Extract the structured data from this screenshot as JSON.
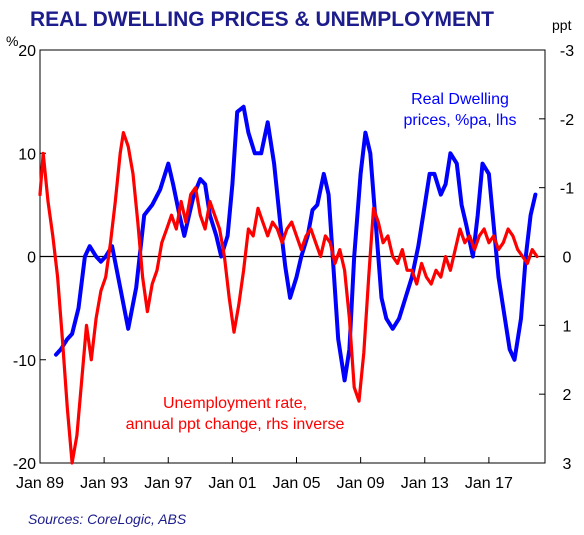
{
  "chart_data": {
    "type": "line",
    "title": "REAL DWELLING PRICES &  UNEMPLOYMENT",
    "left_unit": "%",
    "right_unit": "ppt",
    "source": "Sources: CoreLogic, ABS",
    "x_range": [
      1989.0,
      2020.5
    ],
    "y_left_range": [
      -20,
      20
    ],
    "y_right_range": [
      3,
      -3
    ],
    "y_left_ticks": [
      "-20",
      "-10",
      "0",
      "10",
      "20"
    ],
    "y_right_ticks": [
      "3",
      "2",
      "1",
      "0",
      "-1",
      "-2",
      "-3"
    ],
    "x_tick_labels": [
      "Jan 89",
      "Jan 93",
      "Jan 97",
      "Jan 01",
      "Jan 05",
      "Jan 09",
      "Jan 13",
      "Jan 17"
    ],
    "grid": false,
    "annotations": [
      {
        "lines": [
          "Real Dwelling",
          "prices, %pa, lhs"
        ],
        "color": "#0000ff"
      },
      {
        "lines": [
          "Unemployment rate,",
          "annual ppt change, rhs inverse"
        ],
        "color": "#ff0000"
      }
    ],
    "series": [
      {
        "name": "Real Dwelling prices, %pa, lhs",
        "axis": "left",
        "color": "#0000ff",
        "x": [
          1990.0,
          1990.3,
          1990.7,
          1991.0,
          1991.4,
          1991.8,
          1992.1,
          1992.5,
          1992.8,
          1993.1,
          1993.5,
          1994.0,
          1994.5,
          1995.0,
          1995.5,
          1996.0,
          1996.5,
          1997.0,
          1997.3,
          1997.7,
          1998.0,
          1998.3,
          1998.6,
          1999.0,
          1999.3,
          1999.6,
          2000.0,
          2000.3,
          2000.7,
          2001.0,
          2001.3,
          2001.7,
          2002.0,
          2002.4,
          2002.8,
          2003.2,
          2003.6,
          2004.0,
          2004.3,
          2004.6,
          2005.0,
          2005.3,
          2005.7,
          2006.0,
          2006.3,
          2006.7,
          2007.0,
          2007.3,
          2007.6,
          2008.0,
          2008.3,
          2008.6,
          2009.0,
          2009.3,
          2009.6,
          2010.0,
          2010.3,
          2010.6,
          2011.0,
          2011.4,
          2011.8,
          2012.2,
          2012.6,
          2013.0,
          2013.3,
          2013.6,
          2014.0,
          2014.3,
          2014.6,
          2015.0,
          2015.3,
          2015.6,
          2016.0,
          2016.3,
          2016.6,
          2017.0,
          2017.3,
          2017.6,
          2018.0,
          2018.3,
          2018.6,
          2019.0,
          2019.3,
          2019.6,
          2019.9
        ],
        "y": [
          -9.5,
          -9,
          -8,
          -7.5,
          -5,
          0,
          1,
          0,
          -0.5,
          0,
          1,
          -3,
          -7,
          -3,
          4,
          5,
          6.5,
          9,
          7,
          4,
          2,
          4,
          6,
          7.5,
          7,
          4,
          2,
          0,
          2,
          7,
          14,
          14.5,
          12,
          10,
          10,
          13,
          9,
          3,
          -1,
          -4,
          -2,
          0,
          2,
          4.5,
          5,
          8,
          6,
          -1,
          -8,
          -12,
          -9,
          0,
          8,
          12,
          10,
          2,
          -4,
          -6,
          -7,
          -6,
          -4,
          -2,
          1,
          5,
          8,
          8,
          6,
          7,
          10,
          9,
          5,
          3,
          0,
          4,
          9,
          8,
          3,
          -2,
          -6,
          -9,
          -10,
          -6,
          0,
          4,
          6
        ]
      },
      {
        "name": "Unemployment rate, annual ppt change, rhs inverse",
        "axis": "right",
        "color": "#ff0000",
        "x": [
          1989.0,
          1989.2,
          1989.5,
          1989.8,
          1990.1,
          1990.4,
          1990.7,
          1991.0,
          1991.3,
          1991.6,
          1991.9,
          1992.2,
          1992.5,
          1992.8,
          1993.1,
          1993.4,
          1993.7,
          1994.0,
          1994.2,
          1994.5,
          1994.8,
          1995.1,
          1995.4,
          1995.7,
          1996.0,
          1996.3,
          1996.6,
          1996.9,
          1997.2,
          1997.5,
          1997.8,
          1998.1,
          1998.4,
          1998.7,
          1999.0,
          1999.3,
          1999.6,
          1999.9,
          2000.2,
          2000.5,
          2000.8,
          2001.1,
          2001.4,
          2001.7,
          2002.0,
          2002.3,
          2002.6,
          2002.9,
          2003.2,
          2003.5,
          2003.8,
          2004.1,
          2004.4,
          2004.7,
          2005.0,
          2005.3,
          2005.6,
          2005.9,
          2006.2,
          2006.5,
          2006.8,
          2007.1,
          2007.4,
          2007.7,
          2008.0,
          2008.3,
          2008.6,
          2008.9,
          2009.2,
          2009.5,
          2009.8,
          2010.1,
          2010.4,
          2010.7,
          2011.0,
          2011.3,
          2011.6,
          2011.9,
          2012.2,
          2012.5,
          2012.8,
          2013.1,
          2013.4,
          2013.7,
          2014.0,
          2014.3,
          2014.6,
          2014.9,
          2015.2,
          2015.5,
          2015.8,
          2016.1,
          2016.4,
          2016.7,
          2017.0,
          2017.3,
          2017.6,
          2017.9,
          2018.2,
          2018.5,
          2018.8,
          2019.1,
          2019.4,
          2019.7,
          2020.0
        ],
        "y": [
          -0.9,
          -1.5,
          -0.8,
          -0.3,
          0.3,
          1.2,
          2.2,
          3.0,
          2.6,
          1.8,
          1.0,
          1.5,
          0.9,
          0.5,
          0.3,
          -0.2,
          -0.8,
          -1.5,
          -1.8,
          -1.6,
          -1.2,
          -0.5,
          0.3,
          0.8,
          0.4,
          0.2,
          -0.2,
          -0.4,
          -0.6,
          -0.4,
          -0.8,
          -0.5,
          -0.9,
          -1.0,
          -0.6,
          -0.4,
          -0.8,
          -0.6,
          -0.4,
          0.0,
          0.6,
          1.1,
          0.7,
          0.2,
          -0.4,
          -0.3,
          -0.7,
          -0.5,
          -0.3,
          -0.5,
          -0.4,
          -0.2,
          -0.4,
          -0.5,
          -0.3,
          -0.1,
          -0.3,
          -0.4,
          -0.2,
          0.0,
          -0.3,
          -0.2,
          0.1,
          -0.1,
          0.2,
          0.9,
          1.9,
          2.1,
          1.4,
          0.3,
          -0.7,
          -0.5,
          -0.2,
          -0.3,
          0.0,
          0.1,
          -0.1,
          0.2,
          0.2,
          0.4,
          0.1,
          0.3,
          0.4,
          0.2,
          0.3,
          0.0,
          0.2,
          -0.1,
          -0.4,
          -0.2,
          -0.3,
          -0.1,
          -0.3,
          -0.4,
          -0.2,
          -0.3,
          -0.1,
          -0.2,
          -0.4,
          -0.3,
          -0.1,
          0.0,
          0.1,
          -0.1,
          0.0
        ]
      }
    ]
  }
}
